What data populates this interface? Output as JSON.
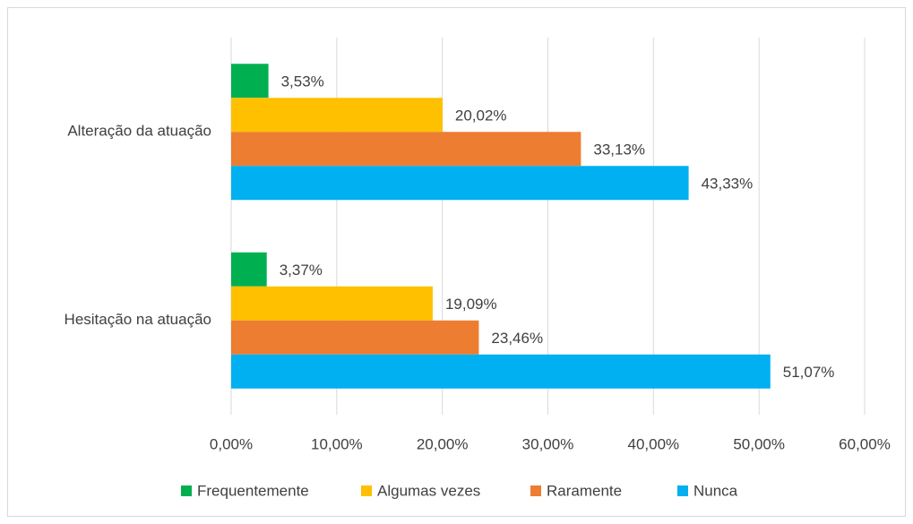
{
  "chart_data": {
    "type": "bar",
    "orientation": "horizontal",
    "categories": [
      "Alteração da atuação",
      "Hesitação na atuação"
    ],
    "series": [
      {
        "name": "Frequentemente",
        "color": "#00b050",
        "values": [
          3.53,
          3.37
        ],
        "value_labels": [
          "3,53%",
          "3,37%"
        ]
      },
      {
        "name": "Algumas vezes",
        "color": "#ffc000",
        "values": [
          20.02,
          19.09
        ],
        "value_labels": [
          "20,02%",
          "19,09%"
        ]
      },
      {
        "name": "Raramente",
        "color": "#ed7d31",
        "values": [
          33.13,
          23.46
        ],
        "value_labels": [
          "33,13%",
          "23,46%"
        ]
      },
      {
        "name": "Nunca",
        "color": "#00b0f0",
        "values": [
          43.33,
          51.07
        ],
        "value_labels": [
          "43,33%",
          "51,07%"
        ]
      }
    ],
    "xlim": [
      0,
      60
    ],
    "xticks": [
      {
        "value": 0,
        "label": "0,00%"
      },
      {
        "value": 10,
        "label": "10,00%"
      },
      {
        "value": 20,
        "label": "20,00%"
      },
      {
        "value": 30,
        "label": "30,00%"
      },
      {
        "value": 40,
        "label": "40,00%"
      },
      {
        "value": 50,
        "label": "50,00%"
      },
      {
        "value": 60,
        "label": "60,00%"
      }
    ],
    "grid": true,
    "legend": "bottom"
  }
}
